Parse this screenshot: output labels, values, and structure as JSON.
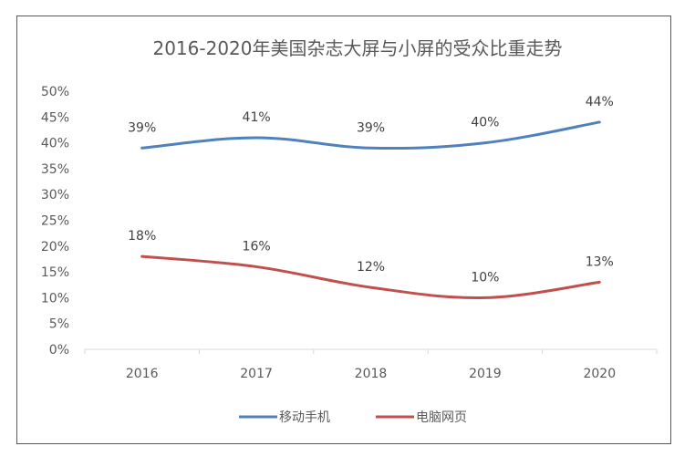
{
  "chart_data": {
    "type": "line",
    "title": "2016-2020年美国杂志大屏与小屏的受众比重走势",
    "categories": [
      "2016",
      "2017",
      "2018",
      "2019",
      "2020"
    ],
    "y_ticks": [
      "0%",
      "5%",
      "10%",
      "15%",
      "20%",
      "25%",
      "30%",
      "35%",
      "40%",
      "45%",
      "50%"
    ],
    "ylim": [
      0,
      50
    ],
    "grid": false,
    "legend_position": "bottom",
    "series": [
      {
        "name": "移动手机",
        "color": "#4f81bd",
        "values": [
          39,
          41,
          39,
          40,
          44
        ],
        "labels": [
          "39%",
          "41%",
          "39%",
          "40%",
          "44%"
        ]
      },
      {
        "name": "电脑网页",
        "color": "#c0504d",
        "values": [
          18,
          16,
          12,
          10,
          13
        ],
        "labels": [
          "18%",
          "16%",
          "12%",
          "10%",
          "13%"
        ]
      }
    ]
  }
}
